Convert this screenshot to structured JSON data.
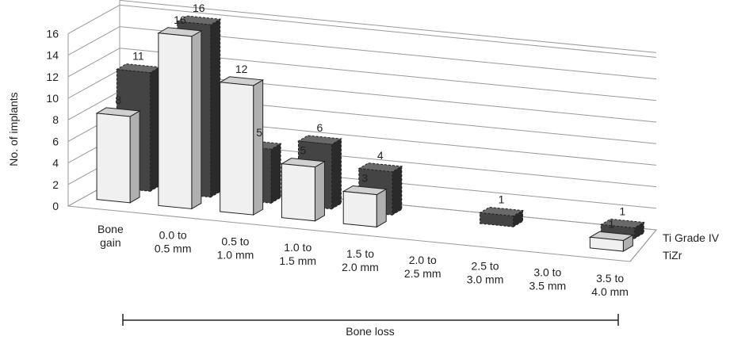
{
  "chart_data": {
    "type": "bar",
    "ylabel": "No. of implants",
    "ylim": [
      0,
      16
    ],
    "yticks": [
      0,
      2,
      4,
      6,
      8,
      10,
      12,
      14,
      16
    ],
    "categories": [
      [
        "Bone",
        "gain"
      ],
      [
        "0.0 to",
        "0.5 mm"
      ],
      [
        "0.5 to",
        "1.0 mm"
      ],
      [
        "1.0 to",
        "1.5 mm"
      ],
      [
        "1.5 to",
        "2.0 mm"
      ],
      [
        "2.0 to",
        "2.5 mm"
      ],
      [
        "2.5 to",
        "3.0 mm"
      ],
      [
        "3.0 to",
        "3.5 mm"
      ],
      [
        "3.5 to",
        "4.0 mm"
      ]
    ],
    "series": [
      {
        "name": "TiZr",
        "values": [
          8,
          16,
          12,
          5,
          3,
          null,
          null,
          null,
          1
        ],
        "color": "#f0f0f0",
        "side": "#b0b0b0",
        "top": "#d0d0d0"
      },
      {
        "name": "Ti Grade IV",
        "values": [
          11,
          16,
          5,
          6,
          4,
          null,
          1,
          null,
          1
        ],
        "color": "#444444",
        "side": "#2a2a2a",
        "top": "#6a6a6a"
      }
    ],
    "bracket_label": "Bone loss",
    "grid": true,
    "legend_position": "right"
  }
}
